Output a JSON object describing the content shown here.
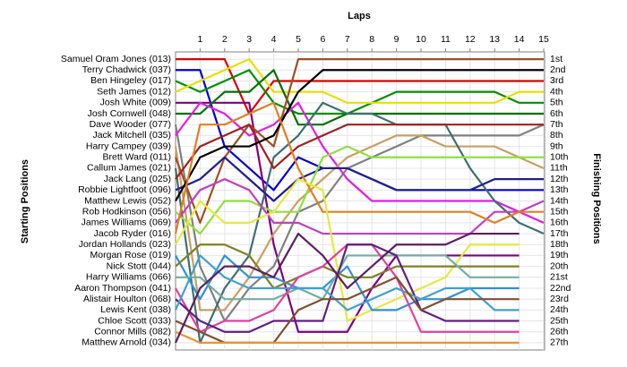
{
  "chart_data": {
    "type": "bump",
    "title": "Laps",
    "y_label": "Starting Positions",
    "y2_label": "Finishing Positions",
    "x": [
      0,
      1,
      2,
      3,
      4,
      5,
      6,
      7,
      8,
      9,
      10,
      11,
      12,
      13,
      14,
      15
    ],
    "xlim": [
      0,
      15
    ],
    "xticks": [
      1,
      2,
      3,
      4,
      5,
      6,
      7,
      8,
      9,
      10,
      11,
      12,
      13,
      14,
      15
    ],
    "ylim": [
      0.5,
      27.5
    ],
    "inverted": true,
    "grid": true,
    "yticks": [
      {
        "value": 1,
        "label": "1st"
      },
      {
        "value": 2,
        "label": "2nd"
      },
      {
        "value": 3,
        "label": "3rd"
      },
      {
        "value": 4,
        "label": "4th"
      },
      {
        "value": 5,
        "label": "5th"
      },
      {
        "value": 6,
        "label": "6th"
      },
      {
        "value": 7,
        "label": "7th"
      },
      {
        "value": 8,
        "label": "8th"
      },
      {
        "value": 9,
        "label": "9th"
      },
      {
        "value": 10,
        "label": "10th"
      },
      {
        "value": 11,
        "label": "11th"
      },
      {
        "value": 12,
        "label": "12th"
      },
      {
        "value": 13,
        "label": "13th"
      },
      {
        "value": 14,
        "label": "14th"
      },
      {
        "value": 15,
        "label": "15th"
      },
      {
        "value": 16,
        "label": "16th"
      },
      {
        "value": 17,
        "label": "17th"
      },
      {
        "value": 18,
        "label": "18th"
      },
      {
        "value": 19,
        "label": "19th"
      },
      {
        "value": 20,
        "label": "20th"
      },
      {
        "value": 21,
        "label": "21st"
      },
      {
        "value": 22,
        "label": "22nd"
      },
      {
        "value": 23,
        "label": "23rd"
      },
      {
        "value": 24,
        "label": "24th"
      },
      {
        "value": 25,
        "label": "25th"
      },
      {
        "value": 26,
        "label": "26th"
      },
      {
        "value": 27,
        "label": "27th"
      }
    ],
    "series": [
      {
        "name": "Samuel Oram Jones (013)",
        "color": "#e00000",
        "values": [
          1,
          1,
          1,
          6,
          3,
          3,
          3,
          3,
          3,
          3,
          3,
          3,
          3,
          3,
          3,
          3
        ]
      },
      {
        "name": "Terry Chadwick (037)",
        "color": "#0000d8",
        "values": [
          2,
          2,
          9,
          11,
          13,
          10,
          11,
          11,
          12,
          13,
          13,
          13,
          13,
          13,
          13,
          13
        ]
      },
      {
        "name": "Ben Hingeley (017)",
        "color": "#009000",
        "values": [
          3,
          4,
          3,
          2,
          5,
          6,
          6,
          6,
          5,
          4,
          4,
          4,
          4,
          4,
          5,
          5
        ]
      },
      {
        "name": "Seth James (012)",
        "color": "#e8e000",
        "values": [
          4,
          3,
          2,
          1,
          4,
          4,
          4,
          5,
          5,
          5,
          5,
          5,
          5,
          5,
          4,
          4
        ]
      },
      {
        "name": "Josh White (009)",
        "color": "#800080",
        "values": [
          5,
          5,
          5,
          5,
          18,
          26,
          26,
          26,
          22,
          19,
          19,
          19,
          19,
          19,
          19,
          null
        ]
      },
      {
        "name": "Josh Cornwell (048)",
        "color": "#007000",
        "values": [
          6,
          6,
          4,
          4,
          2,
          7,
          7,
          6,
          6,
          6,
          6,
          6,
          6,
          6,
          6,
          6
        ]
      },
      {
        "name": "Dave Wooder (077)",
        "color": "#808080",
        "values": [
          7,
          20,
          25,
          22,
          20,
          15,
          14,
          11,
          10,
          9,
          8,
          8,
          8,
          8,
          8,
          7
        ]
      },
      {
        "name": "Jack Mitchell (035)",
        "color": "#e020e0",
        "values": [
          8,
          5,
          6,
          8,
          7,
          5,
          9,
          12,
          14,
          14,
          14,
          14,
          14,
          14,
          15,
          16
        ]
      },
      {
        "name": "Harry Campey (039)",
        "color": "#c8a060",
        "values": [
          9,
          24,
          24,
          21,
          17,
          14,
          12,
          10,
          9,
          8,
          8,
          9,
          9,
          9,
          10,
          11
        ]
      },
      {
        "name": "Brett Ward (011)",
        "color": "#a05020",
        "values": [
          10,
          16,
          10,
          7,
          9,
          1,
          1,
          1,
          1,
          1,
          1,
          1,
          1,
          1,
          1,
          1
        ]
      },
      {
        "name": "Callum James (021)",
        "color": "#407070",
        "values": [
          11,
          27,
          22,
          19,
          10,
          8,
          5,
          6,
          6,
          7,
          7,
          7,
          11,
          14,
          16,
          17
        ]
      },
      {
        "name": "Jack Lang (025)",
        "color": "#a02020",
        "values": [
          12,
          9,
          8,
          7,
          11,
          9,
          8,
          7,
          7,
          7,
          7,
          7,
          7,
          7,
          7,
          7
        ]
      },
      {
        "name": "Robbie Lightfoot (096)",
        "color": "#202090",
        "values": [
          13,
          12,
          10,
          12,
          14,
          12,
          11,
          11,
          12,
          13,
          13,
          13,
          13,
          12,
          12,
          12
        ]
      },
      {
        "name": "Matthew Lewis (052)",
        "color": "#000000",
        "values": [
          14,
          10,
          9,
          9,
          8,
          4,
          2,
          2,
          2,
          2,
          2,
          2,
          2,
          2,
          2,
          2
        ]
      },
      {
        "name": "Rob Hodkinson (056)",
        "color": "#90e040",
        "values": [
          15,
          17,
          14,
          14,
          15,
          15,
          10,
          9,
          10,
          10,
          10,
          10,
          10,
          10,
          10,
          10
        ]
      },
      {
        "name": "James Williams (069)",
        "color": "#c040c0",
        "values": [
          16,
          13,
          12,
          13,
          16,
          16,
          17,
          17,
          17,
          17,
          17,
          17,
          17,
          15,
          15,
          14
        ]
      },
      {
        "name": "Jacob Ryder (016)",
        "color": "#e08020",
        "values": [
          17,
          7,
          7,
          6,
          5,
          11,
          15,
          15,
          15,
          15,
          15,
          15,
          15,
          16,
          15,
          15
        ]
      },
      {
        "name": "Jordan Hollands (023)",
        "color": "#e8e840",
        "values": [
          18,
          14,
          16,
          16,
          15,
          12,
          13,
          25,
          24,
          23,
          22,
          21,
          18,
          18,
          18,
          null
        ]
      },
      {
        "name": "Morgan Rose (019)",
        "color": "#3090e0",
        "values": [
          19,
          23,
          19,
          21,
          21,
          22,
          22,
          20,
          24,
          24,
          23,
          23,
          22,
          22,
          22,
          null
        ]
      },
      {
        "name": "Nick Stott (044)",
        "color": "#808020",
        "values": [
          20,
          18,
          18,
          19,
          22,
          21,
          20,
          21,
          21,
          20,
          20,
          20,
          20,
          20,
          20,
          null
        ]
      },
      {
        "name": "Harry Williams (066)",
        "color": "#70b0a0",
        "values": [
          21,
          21,
          23,
          23,
          23,
          22,
          23,
          19,
          19,
          19,
          19,
          19,
          21,
          21,
          21,
          null
        ]
      },
      {
        "name": "Aaron Thompson (041)",
        "color": "#e040a0",
        "values": [
          22,
          26,
          25,
          25,
          24,
          21,
          20,
          18,
          18,
          21,
          26,
          26,
          26,
          26,
          26,
          null
        ]
      },
      {
        "name": "Alistair Houlton (068)",
        "color": "#602080",
        "values": [
          23,
          25,
          26,
          26,
          25,
          25,
          25,
          18,
          18,
          19,
          24,
          25,
          25,
          25,
          25,
          null
        ]
      },
      {
        "name": "Lewis Kent (038)",
        "color": "#40a0d0",
        "values": [
          24,
          19,
          21,
          22,
          22,
          22,
          22,
          24,
          23,
          22,
          23,
          22,
          22,
          24,
          24,
          null
        ]
      },
      {
        "name": "Chloe Scott (033)",
        "color": "#805030",
        "values": [
          25,
          26,
          27,
          27,
          27,
          24,
          23,
          23,
          22,
          21,
          24,
          23,
          23,
          23,
          23,
          null
        ]
      },
      {
        "name": "Connor Mills (082)",
        "color": "#f09030",
        "values": [
          26,
          27,
          27,
          27,
          27,
          27,
          27,
          27,
          27,
          27,
          27,
          27,
          27,
          27,
          27,
          null
        ]
      },
      {
        "name": "Matthew Arnold (034)",
        "color": "#5a2060",
        "values": [
          27,
          22,
          20,
          20,
          21,
          17,
          19,
          22,
          20,
          18,
          18,
          18,
          17,
          17,
          17,
          null
        ]
      }
    ]
  }
}
